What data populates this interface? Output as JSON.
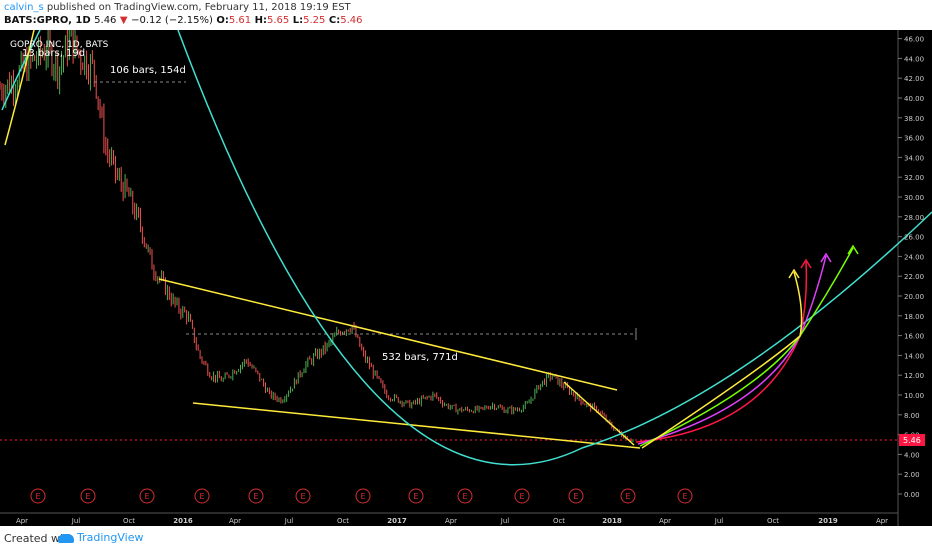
{
  "header": {
    "author": "calvin_s",
    "published_text": "published on TradingView.com, February 11, 2018 19:19 EST",
    "symbol": "BATS:GPRO, 1D",
    "last": "5.46",
    "change_arrow": "▼",
    "change": "−0.12 (−2.15%)",
    "o_label": "O:",
    "o_value": "5.61",
    "h_label": "H:",
    "h_value": "5.65",
    "l_label": "L:",
    "l_value": "5.25",
    "c_label": "C:",
    "c_value": "5.46"
  },
  "footer": {
    "created_with": "Created with",
    "brand": "TradingView"
  },
  "colors": {
    "background": "#000000",
    "up_candle": "#4caf50",
    "down_candle": "#ef5350",
    "trendline": "#ffeb3b",
    "arc": "#40e0d0",
    "price_line": "#ff1744",
    "axis_text": "#cccccc",
    "arrow_red": "#ff1744",
    "arrow_magenta": "#e040fb",
    "arrow_green": "#76ff03",
    "arrow_yellow": "#ffeb3b",
    "earnings": "#d32f2f"
  },
  "chart_data": {
    "type": "candlestick",
    "symbol_label": "GOPRO INC, 1D, BATS",
    "y_ticks": [
      "0.00",
      "2.00",
      "4.00",
      "6.00",
      "8.00",
      "10.00",
      "12.00",
      "14.00",
      "16.00",
      "18.00",
      "20.00",
      "22.00",
      "24.00",
      "26.00",
      "28.00",
      "30.00",
      "32.00",
      "34.00",
      "36.00",
      "38.00",
      "40.00",
      "42.00",
      "44.00",
      "46.00"
    ],
    "ylim": [
      -1.6,
      47.0
    ],
    "x_ticks": [
      "Apr",
      "Jul",
      "Oct",
      "2016",
      "Apr",
      "Jul",
      "Oct",
      "2017",
      "Apr",
      "Jul",
      "Oct",
      "2018",
      "Apr",
      "Jul",
      "Oct",
      "2019",
      "Apr"
    ],
    "last_price": "5.46",
    "annotations": [
      "13 bars, 19d",
      "106 bars, 154d",
      "532 bars, 771d"
    ],
    "earnings_marker": "E",
    "earnings_count": 13,
    "price_path": [
      [
        0,
        41
      ],
      [
        1,
        41.5
      ],
      [
        2,
        43
      ],
      [
        3,
        44
      ],
      [
        4,
        45
      ],
      [
        5,
        43
      ],
      [
        6,
        46
      ],
      [
        7,
        44
      ],
      [
        8,
        43
      ],
      [
        9,
        35
      ],
      [
        10,
        32
      ],
      [
        11,
        30
      ],
      [
        12,
        27
      ],
      [
        13,
        23
      ],
      [
        14,
        21
      ],
      [
        15,
        19
      ],
      [
        16,
        18
      ],
      [
        17,
        14
      ],
      [
        18,
        12
      ],
      [
        19,
        11.5
      ],
      [
        20,
        12.5
      ],
      [
        21,
        13.5
      ],
      [
        22,
        12
      ],
      [
        23,
        10
      ],
      [
        24,
        9.5
      ],
      [
        25,
        11
      ],
      [
        26,
        13
      ],
      [
        27,
        14
      ],
      [
        28,
        15
      ],
      [
        29,
        16.5
      ],
      [
        30,
        17
      ],
      [
        31,
        14
      ],
      [
        32,
        12
      ],
      [
        33,
        10
      ],
      [
        34,
        9.5
      ],
      [
        35,
        9
      ],
      [
        36,
        9.5
      ],
      [
        37,
        10
      ],
      [
        38,
        9
      ],
      [
        39,
        8.5
      ],
      [
        40,
        8.5
      ],
      [
        41,
        8.5
      ],
      [
        42,
        9
      ],
      [
        43,
        8.5
      ],
      [
        44,
        8.5
      ],
      [
        45,
        9
      ],
      [
        46,
        11
      ],
      [
        47,
        12
      ],
      [
        48,
        11
      ],
      [
        49,
        10
      ],
      [
        50,
        9
      ],
      [
        51,
        8.5
      ],
      [
        52,
        7
      ],
      [
        53,
        6
      ],
      [
        54,
        5.5
      ]
    ]
  }
}
